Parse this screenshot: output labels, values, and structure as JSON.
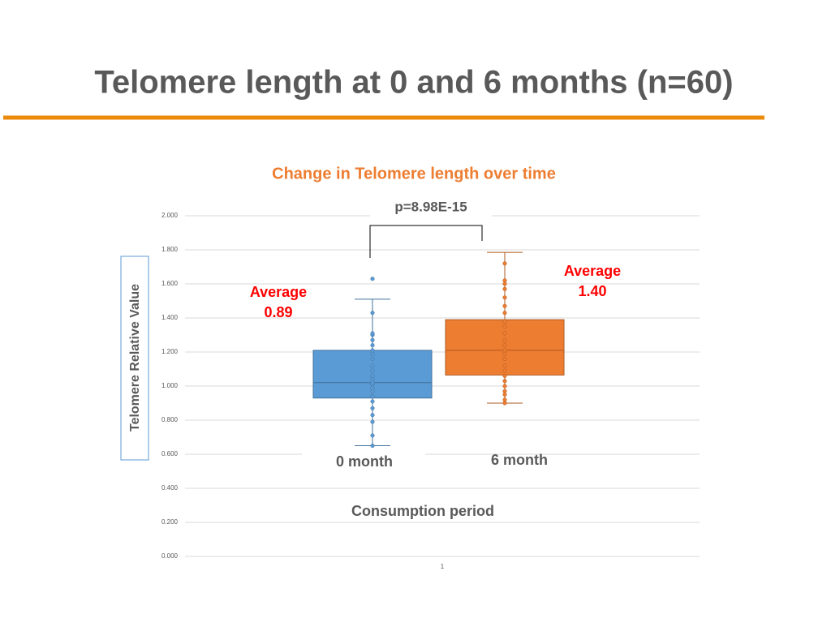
{
  "slide": {
    "title": "Telomere length at 0 and 6 months (n=60)"
  },
  "chart_data": {
    "type": "box",
    "title": "Change in Telomere length over time",
    "ylabel": "Telomere Relative Value",
    "xlabel": "Consumption period",
    "categories": [
      "1"
    ],
    "group_labels": [
      "0 month",
      "6 month"
    ],
    "ylim": [
      0,
      2
    ],
    "yticks": [
      {
        "value": 0,
        "label": "0.000"
      },
      {
        "value": 0.2,
        "label": "0.200"
      },
      {
        "value": 0.4,
        "label": "0.400"
      },
      {
        "value": 0.6,
        "label": "0.600"
      },
      {
        "value": 0.8,
        "label": "0.800"
      },
      {
        "value": 1,
        "label": "1.000"
      },
      {
        "value": 1.2,
        "label": "1.200"
      },
      {
        "value": 1.4,
        "label": "1.400"
      },
      {
        "value": 1.6,
        "label": "1.600"
      },
      {
        "value": 1.8,
        "label": "1.800"
      },
      {
        "value": 2,
        "label": "2.000"
      }
    ],
    "grid": true,
    "series": [
      {
        "color": "#5b9bd5",
        "min": 0.65,
        "q1": 0.93,
        "median": 1.02,
        "q3": 1.21,
        "max": 1.51,
        "points": [
          0.65,
          0.71,
          0.79,
          0.83,
          0.87,
          0.91,
          0.94,
          0.97,
          0.99,
          1.01,
          1.02,
          1.04,
          1.06,
          1.09,
          1.12,
          1.16,
          1.19,
          1.21,
          1.24,
          1.27,
          1.3,
          1.31,
          1.43,
          1.63
        ]
      },
      {
        "color": "#ed7d31",
        "min": 0.9,
        "q1": 1.065,
        "median": 1.21,
        "q3": 1.39,
        "max": 1.785,
        "points": [
          0.9,
          0.92,
          0.95,
          0.97,
          1.0,
          1.03,
          1.06,
          1.09,
          1.12,
          1.16,
          1.19,
          1.21,
          1.24,
          1.27,
          1.31,
          1.35,
          1.38,
          1.43,
          1.47,
          1.52,
          1.57,
          1.6,
          1.62,
          1.72
        ]
      }
    ],
    "averages": {
      "label": "Average",
      "values": [
        0.89,
        1.4
      ],
      "value_labels": [
        "0.89",
        "1.40"
      ]
    },
    "p_annotation": "p=8.98E-15"
  }
}
